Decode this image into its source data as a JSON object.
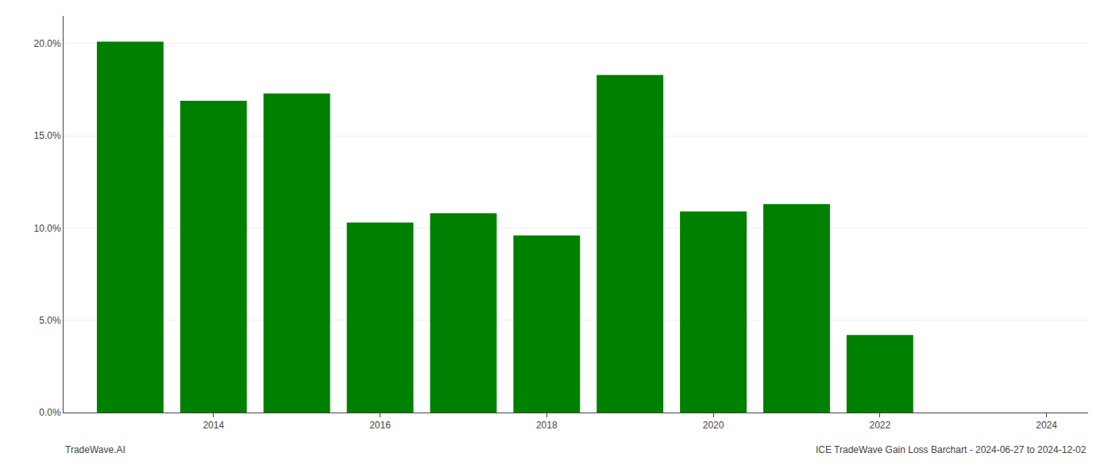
{
  "chart_data": {
    "type": "bar",
    "x": [
      2013,
      2014,
      2015,
      2016,
      2017,
      2018,
      2019,
      2020,
      2021,
      2022
    ],
    "values": [
      0.201,
      0.169,
      0.173,
      0.103,
      0.108,
      0.096,
      0.183,
      0.109,
      0.113,
      0.042
    ],
    "color": "#008000",
    "xlim": [
      2012.2,
      2024.5
    ],
    "xticks": [
      2014,
      2016,
      2018,
      2020,
      2022,
      2024
    ],
    "ylim": [
      0.0,
      0.215
    ],
    "yticks": [
      {
        "value": 0.0,
        "label": "0.0%"
      },
      {
        "value": 0.05,
        "label": "5.0%"
      },
      {
        "value": 0.1,
        "label": "10.0%"
      },
      {
        "value": 0.15,
        "label": "15.0%"
      },
      {
        "value": 0.2,
        "label": "20.0%"
      }
    ],
    "grid": true,
    "annotations": [
      "TradeWave.AI",
      "ICE TradeWave Gain Loss Barchart - 2024-06-27 to 2024-12-02"
    ]
  }
}
